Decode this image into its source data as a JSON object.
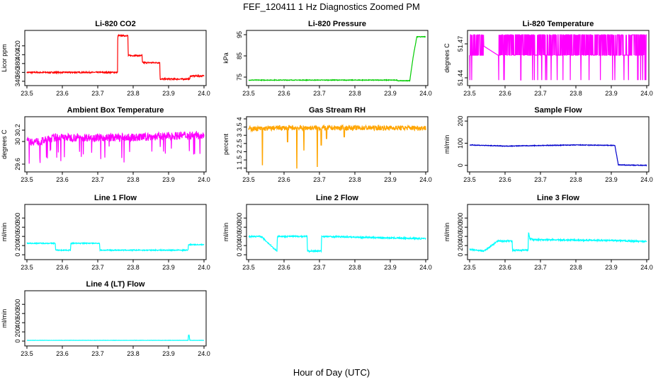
{
  "page": {
    "title": "FEF_120411  1 Hz Diagnostics Zoomed PM",
    "xlabel": "Hour of Day (UTC)"
  },
  "chart_data": [
    {
      "id": "co2",
      "type": "line",
      "title": "Li-820 CO2",
      "ylabel": "Licor ppm",
      "color": "#ff0000",
      "xlim": [
        23.5,
        24.0
      ],
      "ylim": [
        335,
        450
      ],
      "xticks": [
        "23.5",
        "23.6",
        "23.7",
        "23.8",
        "23.9",
        "24.0"
      ],
      "yticks": [
        340,
        360,
        380,
        400,
        420
      ],
      "x": [
        23.5,
        23.756,
        23.7565,
        23.785,
        23.786,
        23.825,
        23.826,
        23.875,
        23.876,
        23.96,
        23.961,
        24.0
      ],
      "y": [
        360,
        360,
        443,
        443,
        398,
        398,
        382,
        382,
        345,
        345,
        352,
        352
      ],
      "noise": 1.5
    },
    {
      "id": "pressure",
      "type": "line",
      "title": "Li-820 Pressure",
      "ylabel": "kPa",
      "color": "#00cc00",
      "xlim": [
        23.5,
        24.0
      ],
      "ylim": [
        72,
        96
      ],
      "xticks": [
        "23.5",
        "23.6",
        "23.7",
        "23.8",
        "23.9",
        "24.0"
      ],
      "yticks": [
        75,
        85,
        95
      ],
      "x": [
        23.5,
        23.92,
        23.921,
        23.955,
        23.965,
        23.975,
        24.0
      ],
      "y": [
        73.6,
        73.6,
        73.3,
        73.3,
        85,
        94,
        94
      ],
      "noise": 0.15
    },
    {
      "id": "temp",
      "type": "line",
      "title": "Li-820 Temperature",
      "ylabel": "degrees C",
      "color": "#ff00ff",
      "xlim": [
        23.5,
        24.0
      ],
      "ylim": [
        51.435,
        51.48
      ],
      "xticks": [
        "23.5",
        "23.6",
        "23.7",
        "23.8",
        "23.9",
        "24.0"
      ],
      "yticks": [
        51.44,
        51.47
      ],
      "x": [
        23.5,
        23.54,
        23.58,
        24.0
      ],
      "y": [
        51.468,
        51.468,
        51.46,
        51.468
      ],
      "noise": 0,
      "oscillate": [
        51.46,
        51.478
      ]
    },
    {
      "id": "ambient",
      "type": "line",
      "title": "Ambient Box Temperature",
      "ylabel": "degrees C",
      "color": "#ff00ff",
      "xlim": [
        23.5,
        24.0
      ],
      "ylim": [
        29.5,
        30.4
      ],
      "xticks": [
        "23.5",
        "23.6",
        "23.7",
        "23.8",
        "23.9",
        "24.0"
      ],
      "yticks": [
        29.6,
        30.0,
        30.2
      ],
      "x": [
        23.5,
        23.54,
        23.58,
        23.8,
        24.0
      ],
      "y": [
        30.0,
        30.0,
        30.07,
        30.07,
        30.12
      ],
      "noise": 0.07
    },
    {
      "id": "rh",
      "type": "line",
      "title": "Gas Stream RH",
      "ylabel": "percent",
      "color": "#ffa500",
      "xlim": [
        23.5,
        24.0
      ],
      "ylim": [
        0.9,
        4.0
      ],
      "xticks": [
        "23.5",
        "23.6",
        "23.7",
        "23.8",
        "23.9",
        "24.0"
      ],
      "yticks": [
        1.0,
        1.5,
        2.0,
        2.5,
        3.0,
        3.5,
        4.0
      ],
      "x": [
        23.5,
        23.54,
        23.58,
        24.0
      ],
      "y": [
        3.4,
        3.4,
        3.45,
        3.45
      ],
      "noise": 0.15,
      "spikes": [
        [
          23.539,
          1.2
        ],
        [
          23.636,
          1.0
        ],
        [
          23.656,
          2.1
        ],
        [
          23.694,
          1.1
        ],
        [
          23.705,
          2.4
        ],
        [
          23.61,
          2.6
        ],
        [
          23.72,
          2.8
        ],
        [
          23.77,
          2.9
        ]
      ]
    },
    {
      "id": "sample",
      "type": "line",
      "title": "Sample Flow",
      "ylabel": "ml/min",
      "color": "#0000cc",
      "xlim": [
        23.5,
        24.0
      ],
      "ylim": [
        -20,
        210
      ],
      "xticks": [
        "23.5",
        "23.6",
        "23.7",
        "23.8",
        "23.9",
        "24.0"
      ],
      "yticks": [
        0,
        100,
        200
      ],
      "x": [
        23.5,
        23.6,
        23.8,
        23.91,
        23.92,
        24.0
      ],
      "y": [
        92,
        87,
        92,
        90,
        2,
        0
      ],
      "noise": 1.5
    },
    {
      "id": "line1",
      "type": "line",
      "title": "Line 1 Flow",
      "ylabel": "ml/min",
      "color": "#00ffff",
      "xlim": [
        23.5,
        24.0
      ],
      "ylim": [
        -60,
        1050
      ],
      "xticks": [
        "23.5",
        "23.6",
        "23.7",
        "23.8",
        "23.9",
        "24.0"
      ],
      "yticks": [
        0,
        200,
        400,
        600,
        800
      ],
      "x": [
        23.5,
        23.58,
        23.581,
        23.623,
        23.624,
        23.705,
        23.706,
        23.955,
        23.956,
        24.0
      ],
      "y": [
        250,
        250,
        100,
        100,
        250,
        250,
        100,
        100,
        220,
        220
      ],
      "noise": 10
    },
    {
      "id": "line2",
      "type": "line",
      "title": "Line 2 Flow",
      "ylabel": "ml/min",
      "color": "#00ffff",
      "xlim": [
        23.5,
        24.0
      ],
      "ylim": [
        -60,
        1050
      ],
      "xticks": [
        "23.5",
        "23.6",
        "23.7",
        "23.8",
        "23.9",
        "24.0"
      ],
      "yticks": [
        0,
        200,
        400,
        600,
        800
      ],
      "x": [
        23.5,
        23.535,
        23.58,
        23.581,
        23.665,
        23.666,
        23.705,
        23.706,
        24.0
      ],
      "y": [
        400,
        400,
        80,
        400,
        400,
        80,
        80,
        400,
        350
      ],
      "noise": 15
    },
    {
      "id": "line3",
      "type": "line",
      "title": "Line 3 Flow",
      "ylabel": "ml/min",
      "color": "#00ffff",
      "xlim": [
        23.5,
        24.0
      ],
      "ylim": [
        -60,
        1050
      ],
      "xticks": [
        "23.5",
        "23.6",
        "23.7",
        "23.8",
        "23.9",
        "24.0"
      ],
      "yticks": [
        0,
        200,
        400,
        600,
        800
      ],
      "x": [
        23.5,
        23.54,
        23.58,
        23.62,
        23.621,
        23.665,
        23.666,
        23.67,
        23.68,
        23.9,
        24.0
      ],
      "y": [
        120,
        80,
        300,
        300,
        100,
        100,
        500,
        350,
        330,
        310,
        290
      ],
      "noise": 15
    },
    {
      "id": "line4",
      "type": "line",
      "title": "Line 4 (LT) Flow",
      "ylabel": "ml/min",
      "color": "#00ffff",
      "xlim": [
        23.5,
        24.0
      ],
      "ylim": [
        -60,
        1050
      ],
      "xticks": [
        "23.5",
        "23.6",
        "23.7",
        "23.8",
        "23.9",
        "24.0"
      ],
      "yticks": [
        0,
        200,
        400,
        600,
        800
      ],
      "x": [
        23.5,
        23.955,
        23.956,
        23.958,
        23.96,
        24.0
      ],
      "y": [
        15,
        15,
        130,
        130,
        15,
        15
      ],
      "noise": 2
    }
  ]
}
